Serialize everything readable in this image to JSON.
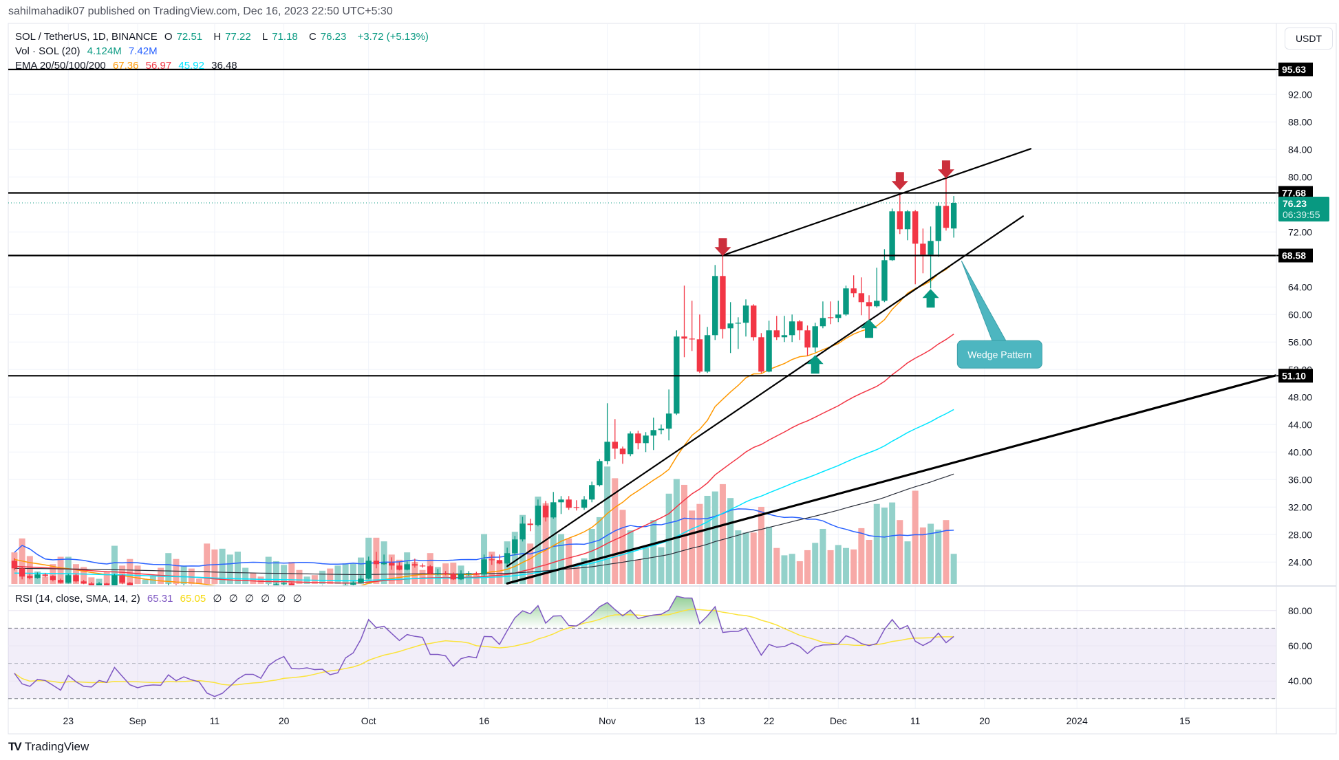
{
  "header": {
    "published": "sahilmahadik07 published on TradingView.com, Dec 16, 2023 22:50 UTC+5:30"
  },
  "legend": {
    "symbol": "SOL / TetherUS, 1D, BINANCE",
    "open_label": "O",
    "open": "72.51",
    "high_label": "H",
    "high": "77.22",
    "low_label": "L",
    "low": "71.18",
    "close_label": "C",
    "close": "76.23",
    "change": "+3.72 (+5.13%)",
    "vol_label": "Vol · SOL (20)",
    "vol_value": "4.124M",
    "vol_ma": "7.42M",
    "ema_label": "EMA 20/50/100/200",
    "ema20": "67.36",
    "ema50": "56.97",
    "ema100": "45.92",
    "ema200": "36.48",
    "rsi_label": "RSI (14, close, SMA, 14, 2)",
    "rsi_value": "65.31",
    "rsi_sma": "65.05",
    "rsi_empty": [
      "∅",
      "∅",
      "∅",
      "∅",
      "∅",
      "∅"
    ]
  },
  "currency_button": "USDT",
  "footer": {
    "logo": "TV",
    "brand": "TradingView"
  },
  "colors": {
    "up": "#089981",
    "down": "#f23645",
    "vol_up": "#93d1ca",
    "vol_down": "#f7a9a7",
    "ema20": "#ff9800",
    "ema50": "#f23645",
    "ema100": "#00e5ff",
    "ema200": "#2a2e39",
    "vol_ma": "#2962ff",
    "rsi": "#7e57c2",
    "rsi_sma": "#fbe33b",
    "callout": "#4db6c0",
    "last_price": "#089981"
  },
  "chart_data": {
    "type": "candlestick",
    "title": "SOL / TetherUS, 1D, BINANCE",
    "start_date": "2023-08-16",
    "ylabel": "USDT",
    "ylim": [
      20.6,
      100
    ],
    "ohlc": [
      [
        24.2,
        24.6,
        22.8,
        23.1
      ],
      [
        23.1,
        23.4,
        21.5,
        21.9
      ],
      [
        22.0,
        22.3,
        21.5,
        21.7
      ],
      [
        21.7,
        22.5,
        21.6,
        22.2
      ],
      [
        22.2,
        22.4,
        21.8,
        22.0
      ],
      [
        22.0,
        22.1,
        21.2,
        21.4
      ],
      [
        21.4,
        21.6,
        20.9,
        21.0
      ],
      [
        21.0,
        22.3,
        20.9,
        22.1
      ],
      [
        22.1,
        22.3,
        21.0,
        21.2
      ],
      [
        21.2,
        21.4,
        20.8,
        20.9
      ],
      [
        20.9,
        21.1,
        20.4,
        20.6
      ],
      [
        20.6,
        21.1,
        20.4,
        20.9
      ],
      [
        20.9,
        21.0,
        20.3,
        20.5
      ],
      [
        20.5,
        22.3,
        20.4,
        22.1
      ],
      [
        22.1,
        22.2,
        20.8,
        21.0
      ],
      [
        21.0,
        21.1,
        20.2,
        20.4
      ],
      [
        20.4,
        20.5,
        19.6,
        19.8
      ],
      [
        19.8,
        20.3,
        19.5,
        20.0
      ],
      [
        20.0,
        20.4,
        19.8,
        20.2
      ],
      [
        20.2,
        20.3,
        19.8,
        19.9
      ],
      [
        19.9,
        20.9,
        19.8,
        20.6
      ],
      [
        20.6,
        20.8,
        20.0,
        20.2
      ],
      [
        20.2,
        20.8,
        20.0,
        20.6
      ],
      [
        20.6,
        20.7,
        20.1,
        20.3
      ],
      [
        20.3,
        20.4,
        19.8,
        20.0
      ],
      [
        20.0,
        20.1,
        19.2,
        19.4
      ],
      [
        19.4,
        19.5,
        18.9,
        19.1
      ],
      [
        19.1,
        19.6,
        19.0,
        19.4
      ],
      [
        19.4,
        19.9,
        19.3,
        19.7
      ],
      [
        19.7,
        20.2,
        19.6,
        20.0
      ],
      [
        20.0,
        20.5,
        19.9,
        20.3
      ],
      [
        20.3,
        20.4,
        20.0,
        20.1
      ],
      [
        20.1,
        20.2,
        19.8,
        19.9
      ],
      [
        19.9,
        20.8,
        19.8,
        20.6
      ],
      [
        20.6,
        21.0,
        20.4,
        20.8
      ],
      [
        20.8,
        21.1,
        20.6,
        20.9
      ],
      [
        20.9,
        21.0,
        20.2,
        20.4
      ],
      [
        20.4,
        20.6,
        20.1,
        20.2
      ],
      [
        20.2,
        20.6,
        20.1,
        20.5
      ],
      [
        20.5,
        20.6,
        20.1,
        20.3
      ],
      [
        20.3,
        20.7,
        20.1,
        20.5
      ],
      [
        20.5,
        20.6,
        20.0,
        20.2
      ],
      [
        20.2,
        20.6,
        20.1,
        20.4
      ],
      [
        20.4,
        20.9,
        20.3,
        20.7
      ],
      [
        20.7,
        21.2,
        20.6,
        21.0
      ],
      [
        21.0,
        22.1,
        20.9,
        21.6
      ],
      [
        21.6,
        24.8,
        21.5,
        24.2
      ],
      [
        24.2,
        25.5,
        23.1,
        23.7
      ],
      [
        23.7,
        25.1,
        23.6,
        23.9
      ],
      [
        23.9,
        24.7,
        22.9,
        23.5
      ],
      [
        23.5,
        24.0,
        22.8,
        22.9
      ],
      [
        22.9,
        24.1,
        22.8,
        23.7
      ],
      [
        23.7,
        24.5,
        23.2,
        23.5
      ],
      [
        23.5,
        23.8,
        23.2,
        23.4
      ],
      [
        23.4,
        23.6,
        22.2,
        22.3
      ],
      [
        22.3,
        23.0,
        22.1,
        22.4
      ],
      [
        22.4,
        22.7,
        22.1,
        22.3
      ],
      [
        22.3,
        22.5,
        21.4,
        21.5
      ],
      [
        21.5,
        22.8,
        21.4,
        22.3
      ],
      [
        22.3,
        22.7,
        22.0,
        22.4
      ],
      [
        22.4,
        22.6,
        22.1,
        22.2
      ],
      [
        22.2,
        25.1,
        21.9,
        24.4
      ],
      [
        24.4,
        25.1,
        23.6,
        24.3
      ],
      [
        24.3,
        25.1,
        23.7,
        23.8
      ],
      [
        23.8,
        26.1,
        23.4,
        25.3
      ],
      [
        25.3,
        27.8,
        25.0,
        27.3
      ],
      [
        27.3,
        30.6,
        27.0,
        29.6
      ],
      [
        29.6,
        30.3,
        28.5,
        29.4
      ],
      [
        29.4,
        33.1,
        29.2,
        32.2
      ],
      [
        32.2,
        32.9,
        29.9,
        30.5
      ],
      [
        30.5,
        34.2,
        30.3,
        32.7
      ],
      [
        32.7,
        33.6,
        31.0,
        33.1
      ],
      [
        33.1,
        33.6,
        31.6,
        31.9
      ],
      [
        32.0,
        33.0,
        31.5,
        31.9
      ],
      [
        31.9,
        33.6,
        31.6,
        33.1
      ],
      [
        33.1,
        35.7,
        32.7,
        35.2
      ],
      [
        35.2,
        39.0,
        35.0,
        38.7
      ],
      [
        38.7,
        47.1,
        38.2,
        41.5
      ],
      [
        41.5,
        44.8,
        39.0,
        40.5
      ],
      [
        40.5,
        40.8,
        38.3,
        39.7
      ],
      [
        39.7,
        43.0,
        39.4,
        42.7
      ],
      [
        42.7,
        43.1,
        40.4,
        41.3
      ],
      [
        41.3,
        42.9,
        40.0,
        42.4
      ],
      [
        42.4,
        45.0,
        40.3,
        43.2
      ],
      [
        43.2,
        44.0,
        42.6,
        43.4
      ],
      [
        43.4,
        49.1,
        41.7,
        45.6
      ],
      [
        45.6,
        57.7,
        45.4,
        56.8
      ],
      [
        56.8,
        64.2,
        53.8,
        56.5
      ],
      [
        56.5,
        62.0,
        54.7,
        56.4
      ],
      [
        56.4,
        60.0,
        51.5,
        51.7
      ],
      [
        51.7,
        58.2,
        51.5,
        57.0
      ],
      [
        57.0,
        67.2,
        56.3,
        65.6
      ],
      [
        65.6,
        68.6,
        56.5,
        57.9
      ],
      [
        58.0,
        61.8,
        54.4,
        58.7
      ],
      [
        58.7,
        59.6,
        55.0,
        58.8
      ],
      [
        58.8,
        62.2,
        56.8,
        61.3
      ],
      [
        61.3,
        61.5,
        56.2,
        56.7
      ],
      [
        56.7,
        57.3,
        51.5,
        51.7
      ],
      [
        51.7,
        59.1,
        51.6,
        57.7
      ],
      [
        57.7,
        59.8,
        56.3,
        56.7
      ],
      [
        56.7,
        59.8,
        56.0,
        57.0
      ],
      [
        57.0,
        60.0,
        56.0,
        59.0
      ],
      [
        59.0,
        59.2,
        56.3,
        57.7
      ],
      [
        57.7,
        58.4,
        54.0,
        55.2
      ],
      [
        55.2,
        58.8,
        54.5,
        58.3
      ],
      [
        58.3,
        61.9,
        58.0,
        59.5
      ],
      [
        59.6,
        61.9,
        58.6,
        59.5
      ],
      [
        59.5,
        62.0,
        58.9,
        60.0
      ],
      [
        60.0,
        64.2,
        59.8,
        63.8
      ],
      [
        63.8,
        65.7,
        62.5,
        63.1
      ],
      [
        63.1,
        65.4,
        59.9,
        61.8
      ],
      [
        61.8,
        62.8,
        59.2,
        61.2
      ],
      [
        61.2,
        66.8,
        61.0,
        62.0
      ],
      [
        62.0,
        69.5,
        61.8,
        67.9
      ],
      [
        67.9,
        75.4,
        67.8,
        75.0
      ],
      [
        75.0,
        77.7,
        71.7,
        72.4
      ],
      [
        72.4,
        75.2,
        70.8,
        75.0
      ],
      [
        75.0,
        75.2,
        64.4,
        70.3
      ],
      [
        70.3,
        72.5,
        66.0,
        68.7
      ],
      [
        68.7,
        72.8,
        63.8,
        70.7
      ],
      [
        70.7,
        76.3,
        68.4,
        75.8
      ],
      [
        75.8,
        80.1,
        72.2,
        72.6
      ],
      [
        72.51,
        77.22,
        71.18,
        76.23
      ]
    ],
    "volume_millions": [
      4.3,
      6.2,
      3.8,
      1.7,
      1.0,
      2.7,
      3.7,
      3.7,
      2.7,
      2.3,
      0.9,
      0.7,
      1.6,
      5.2,
      2.5,
      3.4,
      2.5,
      0.6,
      1.1,
      2.2,
      4.2,
      3.4,
      2.5,
      2.1,
      0.7,
      5.5,
      4.7,
      4.8,
      4.0,
      4.4,
      2.2,
      1.5,
      1.0,
      3.7,
      3.1,
      2.6,
      3.0,
      1.9,
      1.0,
      1.2,
      1.8,
      2.1,
      2.5,
      2.8,
      2.8,
      3.6,
      6.3,
      6.3,
      5.8,
      4.0,
      3.3,
      4.3,
      3.0,
      1.9,
      4.2,
      2.3,
      2.8,
      2.9,
      2.5,
      1.4,
      1.4,
      6.8,
      4.4,
      3.0,
      5.8,
      7.1,
      9.4,
      5.5,
      11.9,
      11.0,
      10.8,
      6.8,
      6.2,
      2.6,
      3.5,
      7.5,
      9.1,
      16.0,
      14.4,
      10.1,
      7.3,
      3.3,
      4.9,
      8.7,
      5.0,
      12.3,
      14.3,
      13.5,
      10.0,
      10.9,
      12.0,
      12.6,
      13.6,
      11.7,
      7.3,
      7.0,
      7.0,
      10.5,
      7.8,
      4.9,
      3.9,
      4.1,
      3.1,
      4.6,
      5.6,
      7.5,
      4.6,
      5.3,
      4.9,
      4.7,
      7.6,
      6.0,
      10.9,
      10.4,
      11.1,
      8.7,
      5.8,
      12.7,
      7.7,
      8.2,
      7.4,
      8.7,
      4.1
    ],
    "volume_ma_period": 20,
    "ema_periods": [
      20,
      50,
      100,
      200
    ],
    "ema_initial": [
      24.4,
      23.4,
      22.4,
      23.1
    ],
    "rsi": [
      44.4,
      38.4,
      37.0,
      41.0,
      40.3,
      37.6,
      34.8,
      43.2,
      39.6,
      37.0,
      36.6,
      40.3,
      39.2,
      47.7,
      42.7,
      37.9,
      36.2,
      37.4,
      37.8,
      37.6,
      43.5,
      40.2,
      42.4,
      40.7,
      39.5,
      33.2,
      31.2,
      33.0,
      37.0,
      41.1,
      43.8,
      43.8,
      41.6,
      48.7,
      51.9,
      53.9,
      47.1,
      46.9,
      47.5,
      46.5,
      46.7,
      43.6,
      44.7,
      53.1,
      56.0,
      63.7,
      74.9,
      70.3,
      71.1,
      67.0,
      63.0,
      66.4,
      65.4,
      64.8,
      55.1,
      55.1,
      54.3,
      48.4,
      52.7,
      53.9,
      53.2,
      65.3,
      65.2,
      60.8,
      68.6,
      75.9,
      79.9,
      78.2,
      82.8,
      72.9,
      76.9,
      77.1,
      71.5,
      71.3,
      74.2,
      77.9,
      82.2,
      84.6,
      80.6,
      77.0,
      80.3,
      75.5,
      76.6,
      77.5,
      77.9,
      80.3,
      88.2,
      87.2,
      87.1,
      72.6,
      77.0,
      82.2,
      67.6,
      68.1,
      68.2,
      70.2,
      62.4,
      54.7,
      60.8,
      59.2,
      59.6,
      61.6,
      59.6,
      55.6,
      59.3,
      60.5,
      60.6,
      60.9,
      65.7,
      64.1,
      61.3,
      60.1,
      61.3,
      69.3,
      74.9,
      69.5,
      71.5,
      62.6,
      60.2,
      62.5,
      67.2,
      61.8,
      65.31
    ],
    "rsi_sma_period": 14,
    "rsi_bands": {
      "upper": 70,
      "middle": 50,
      "lower": 30
    },
    "price_axis": {
      "ticks": [
        "92.00",
        "88.00",
        "84.00",
        "80.00",
        "72.00",
        "64.00",
        "60.00",
        "56.00",
        "52.00",
        "48.00",
        "44.00",
        "40.00",
        "36.00",
        "32.00",
        "28.00",
        "24.00"
      ]
    },
    "rsi_axis": {
      "ticks": [
        "80.00",
        "60.00",
        "40.00"
      ]
    },
    "time_axis": [
      {
        "label": "23",
        "date": "2023-08-23"
      },
      {
        "label": "Sep",
        "date": "2023-09-01"
      },
      {
        "label": "11",
        "date": "2023-09-11"
      },
      {
        "label": "20",
        "date": "2023-09-20"
      },
      {
        "label": "Oct",
        "date": "2023-10-01"
      },
      {
        "label": "16",
        "date": "2023-10-16"
      },
      {
        "label": "Nov",
        "date": "2023-11-01"
      },
      {
        "label": "13",
        "date": "2023-11-13"
      },
      {
        "label": "22",
        "date": "2023-11-22"
      },
      {
        "label": "Dec",
        "date": "2023-12-01"
      },
      {
        "label": "11",
        "date": "2023-12-11"
      },
      {
        "label": "20",
        "date": "2023-12-20"
      },
      {
        "label": "2024",
        "date": "2024-01-01"
      },
      {
        "label": "15",
        "date": "2024-01-15"
      }
    ],
    "horizontal_levels": [
      {
        "price": 95.63,
        "label": "95.63"
      },
      {
        "price": 77.68,
        "label": "77.68"
      },
      {
        "price": 68.58,
        "label": "68.58"
      },
      {
        "price": 51.1,
        "label": "51.10"
      }
    ],
    "last_price": {
      "label": "76.23",
      "value": 76.23,
      "countdown": "06:39:55"
    },
    "trendlines": [
      {
        "name": "wedge-upper",
        "from": {
          "date": "2023-11-16",
          "price": 68.6
        },
        "to": {
          "date": "2023-12-26",
          "price": 84.1
        },
        "weight": "normal"
      },
      {
        "name": "wedge-lower",
        "from": {
          "date": "2023-10-19",
          "price": 23.4
        },
        "to": {
          "date": "2023-12-25",
          "price": 74.3
        },
        "weight": "normal"
      },
      {
        "name": "long-support",
        "from": {
          "date": "2023-10-19",
          "price": 20.9
        },
        "to": {
          "date": "2024-01-27",
          "price": 51.2
        },
        "weight": "thick"
      }
    ],
    "arrows": [
      {
        "dir": "down",
        "date": "2023-11-16",
        "price": 68.5
      },
      {
        "dir": "down",
        "date": "2023-12-09",
        "price": 78.1
      },
      {
        "dir": "down",
        "date": "2023-12-15",
        "price": 79.8
      },
      {
        "dir": "up",
        "date": "2023-11-28",
        "price": 54.1
      },
      {
        "dir": "up",
        "date": "2023-12-05",
        "price": 59.3
      },
      {
        "dir": "up",
        "date": "2023-12-13",
        "price": 63.7
      }
    ],
    "callout": {
      "text": "Wedge Pattern",
      "date": "2023-12-17",
      "price": 67.8
    }
  }
}
